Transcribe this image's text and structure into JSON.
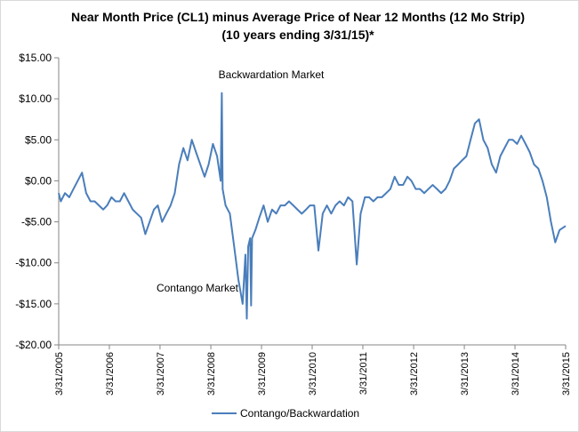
{
  "chart_data": {
    "type": "line",
    "title": "Near Month Price (CL1) minus Average Price of Near 12 Months (12 Mo Strip)",
    "subtitle": "(10 years ending 3/31/15)*",
    "annotations": [
      "Backwardation Market",
      "Contango Market"
    ],
    "x": [
      "2005-03-31",
      "2005-04-15",
      "2005-05-15",
      "2005-06-15",
      "2005-07-15",
      "2005-08-15",
      "2005-09-15",
      "2005-10-15",
      "2005-11-15",
      "2005-12-15",
      "2006-01-15",
      "2006-02-15",
      "2006-03-15",
      "2006-04-15",
      "2006-05-15",
      "2006-06-15",
      "2006-07-15",
      "2006-08-15",
      "2006-09-15",
      "2006-10-15",
      "2006-11-15",
      "2006-12-15",
      "2007-01-15",
      "2007-02-15",
      "2007-03-15",
      "2007-04-15",
      "2007-05-15",
      "2007-06-15",
      "2007-07-15",
      "2007-08-15",
      "2007-09-15",
      "2007-10-15",
      "2007-11-15",
      "2007-12-15",
      "2008-01-15",
      "2008-02-15",
      "2008-03-15",
      "2008-04-15",
      "2008-05-15",
      "2008-06-10",
      "2008-06-18",
      "2008-06-24",
      "2008-07-15",
      "2008-08-15",
      "2008-09-15",
      "2008-10-15",
      "2008-11-15",
      "2008-12-05",
      "2008-12-15",
      "2008-12-25",
      "2009-01-08",
      "2009-01-15",
      "2009-01-22",
      "2009-02-15",
      "2009-03-15",
      "2009-04-15",
      "2009-05-15",
      "2009-06-15",
      "2009-07-15",
      "2009-08-15",
      "2009-09-15",
      "2009-10-15",
      "2009-11-15",
      "2009-12-15",
      "2010-01-15",
      "2010-02-15",
      "2010-03-15",
      "2010-04-15",
      "2010-05-15",
      "2010-06-15",
      "2010-07-15",
      "2010-08-15",
      "2010-09-15",
      "2010-10-15",
      "2010-11-15",
      "2010-12-15",
      "2011-01-15",
      "2011-02-15",
      "2011-03-15",
      "2011-04-15",
      "2011-05-15",
      "2011-06-15",
      "2011-07-15",
      "2011-08-15",
      "2011-09-15",
      "2011-10-15",
      "2011-11-15",
      "2011-12-15",
      "2012-01-15",
      "2012-02-15",
      "2012-03-15",
      "2012-04-15",
      "2012-05-15",
      "2012-06-15",
      "2012-07-15",
      "2012-08-15",
      "2012-09-15",
      "2012-10-15",
      "2012-11-15",
      "2012-12-15",
      "2013-01-15",
      "2013-02-15",
      "2013-03-15",
      "2013-04-15",
      "2013-05-15",
      "2013-06-15",
      "2013-07-15",
      "2013-08-15",
      "2013-09-15",
      "2013-10-15",
      "2013-11-15",
      "2013-12-15",
      "2014-01-15",
      "2014-02-15",
      "2014-03-15",
      "2014-04-15",
      "2014-05-15",
      "2014-06-15",
      "2014-07-15",
      "2014-08-15",
      "2014-09-15",
      "2014-10-15",
      "2014-11-15",
      "2014-12-15",
      "2015-01-15",
      "2015-02-15",
      "2015-03-31"
    ],
    "series": [
      {
        "name": "Contango/Backwardation",
        "color": "#4a7ebb",
        "values": [
          -1.5,
          -2.5,
          -1.5,
          -2,
          -1,
          0,
          1,
          -1.5,
          -2.5,
          -2.5,
          -3,
          -3.5,
          -3,
          -2,
          -2.5,
          -2.5,
          -1.5,
          -2.5,
          -3.5,
          -4,
          -4.5,
          -6.5,
          -5,
          -3.5,
          -3,
          -5,
          -4,
          -3,
          -1.5,
          2,
          4,
          2.5,
          5,
          3.5,
          2,
          0.5,
          2,
          4.5,
          3,
          0,
          10.7,
          -1,
          -3,
          -4,
          -8,
          -12,
          -15,
          -9,
          -16.8,
          -8,
          -7,
          -15.2,
          -7,
          -6,
          -4.5,
          -3,
          -5,
          -3.5,
          -4,
          -3,
          -3,
          -2.5,
          -3,
          -3.5,
          -4,
          -3.5,
          -3,
          -3,
          -8.5,
          -4,
          -3,
          -4,
          -3,
          -2.5,
          -3,
          -2,
          -2.5,
          -10.2,
          -4,
          -2,
          -2,
          -2.5,
          -2,
          -2,
          -1.5,
          -1,
          0.5,
          -0.5,
          -0.5,
          0.5,
          0,
          -1,
          -1,
          -1.5,
          -1,
          -0.5,
          -1,
          -1.5,
          -1,
          0,
          1.5,
          2,
          2.5,
          3,
          5,
          7,
          7.5,
          5,
          4,
          2,
          1,
          3,
          4,
          5,
          5,
          4.5,
          5.5,
          4.5,
          3.5,
          2,
          1.5,
          0,
          -2,
          -5,
          -7.5,
          -6,
          -5.5
        ]
      }
    ],
    "xlim": [
      "2005-03-31",
      "2015-03-31"
    ],
    "xticks": [
      {
        "value": "2005-03-31",
        "label": "3/31/2005"
      },
      {
        "value": "2006-03-31",
        "label": "3/31/2006"
      },
      {
        "value": "2007-03-31",
        "label": "3/31/2007"
      },
      {
        "value": "2008-03-31",
        "label": "3/31/2008"
      },
      {
        "value": "2009-03-31",
        "label": "3/31/2009"
      },
      {
        "value": "2010-03-31",
        "label": "3/31/2010"
      },
      {
        "value": "2011-03-31",
        "label": "3/31/2011"
      },
      {
        "value": "2012-03-31",
        "label": "3/31/2012"
      },
      {
        "value": "2013-03-31",
        "label": "3/31/2013"
      },
      {
        "value": "2014-03-31",
        "label": "3/31/2014"
      },
      {
        "value": "2015-03-31",
        "label": "3/31/2015"
      }
    ],
    "ylim": [
      -20,
      15
    ],
    "yticks": [
      {
        "value": -20,
        "label": "-$20.00"
      },
      {
        "value": -15,
        "label": "-$15.00"
      },
      {
        "value": -10,
        "label": "-$10.00"
      },
      {
        "value": -5,
        "label": "-$5.00"
      },
      {
        "value": 0,
        "label": "$0.00"
      },
      {
        "value": 5,
        "label": "$5.00"
      },
      {
        "value": 10,
        "label": "$10.00"
      },
      {
        "value": 15,
        "label": "$15.00"
      }
    ],
    "legend": "bottom"
  }
}
